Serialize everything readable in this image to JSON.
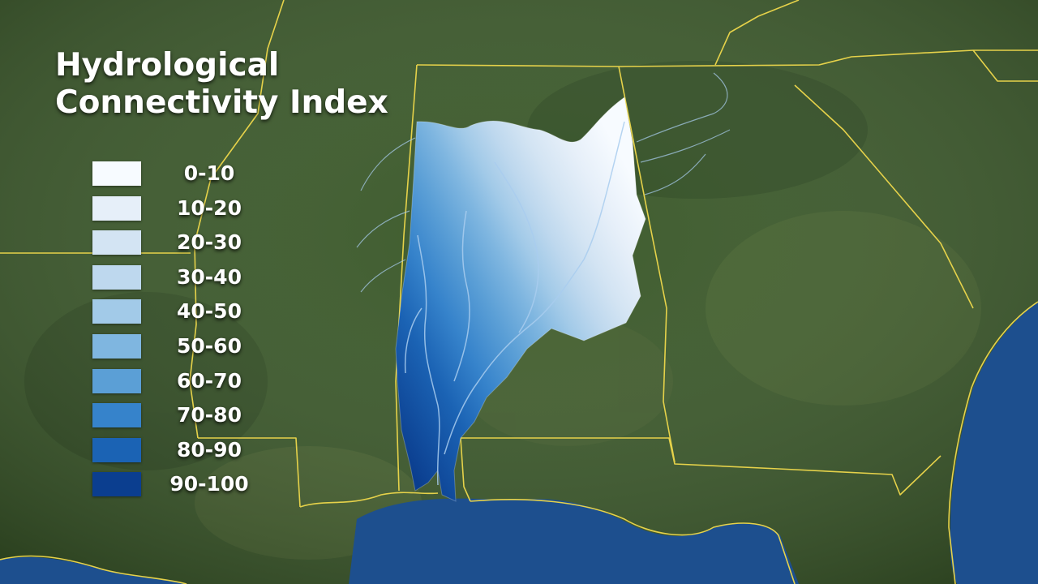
{
  "legend": {
    "title_lines": [
      "Hydrological",
      "Connectivity Index"
    ],
    "classes": [
      {
        "label": "0-10",
        "color": "#f7fbff"
      },
      {
        "label": "10-20",
        "color": "#e6eff9"
      },
      {
        "label": "20-30",
        "color": "#d3e4f3"
      },
      {
        "label": "30-40",
        "color": "#bed8ee"
      },
      {
        "label": "40-50",
        "color": "#a2cae8"
      },
      {
        "label": "50-60",
        "color": "#7fb6e0"
      },
      {
        "label": "60-70",
        "color": "#5b9fd6"
      },
      {
        "label": "70-80",
        "color": "#3683cb"
      },
      {
        "label": "80-90",
        "color": "#1b63b4"
      },
      {
        "label": "90-100",
        "color": "#0b3e8f"
      }
    ]
  },
  "map": {
    "land_color": "#3c5a2b",
    "water_color": "#1d4f8e",
    "border_color": "#e6d24a",
    "river_color": "#a9cdef"
  }
}
